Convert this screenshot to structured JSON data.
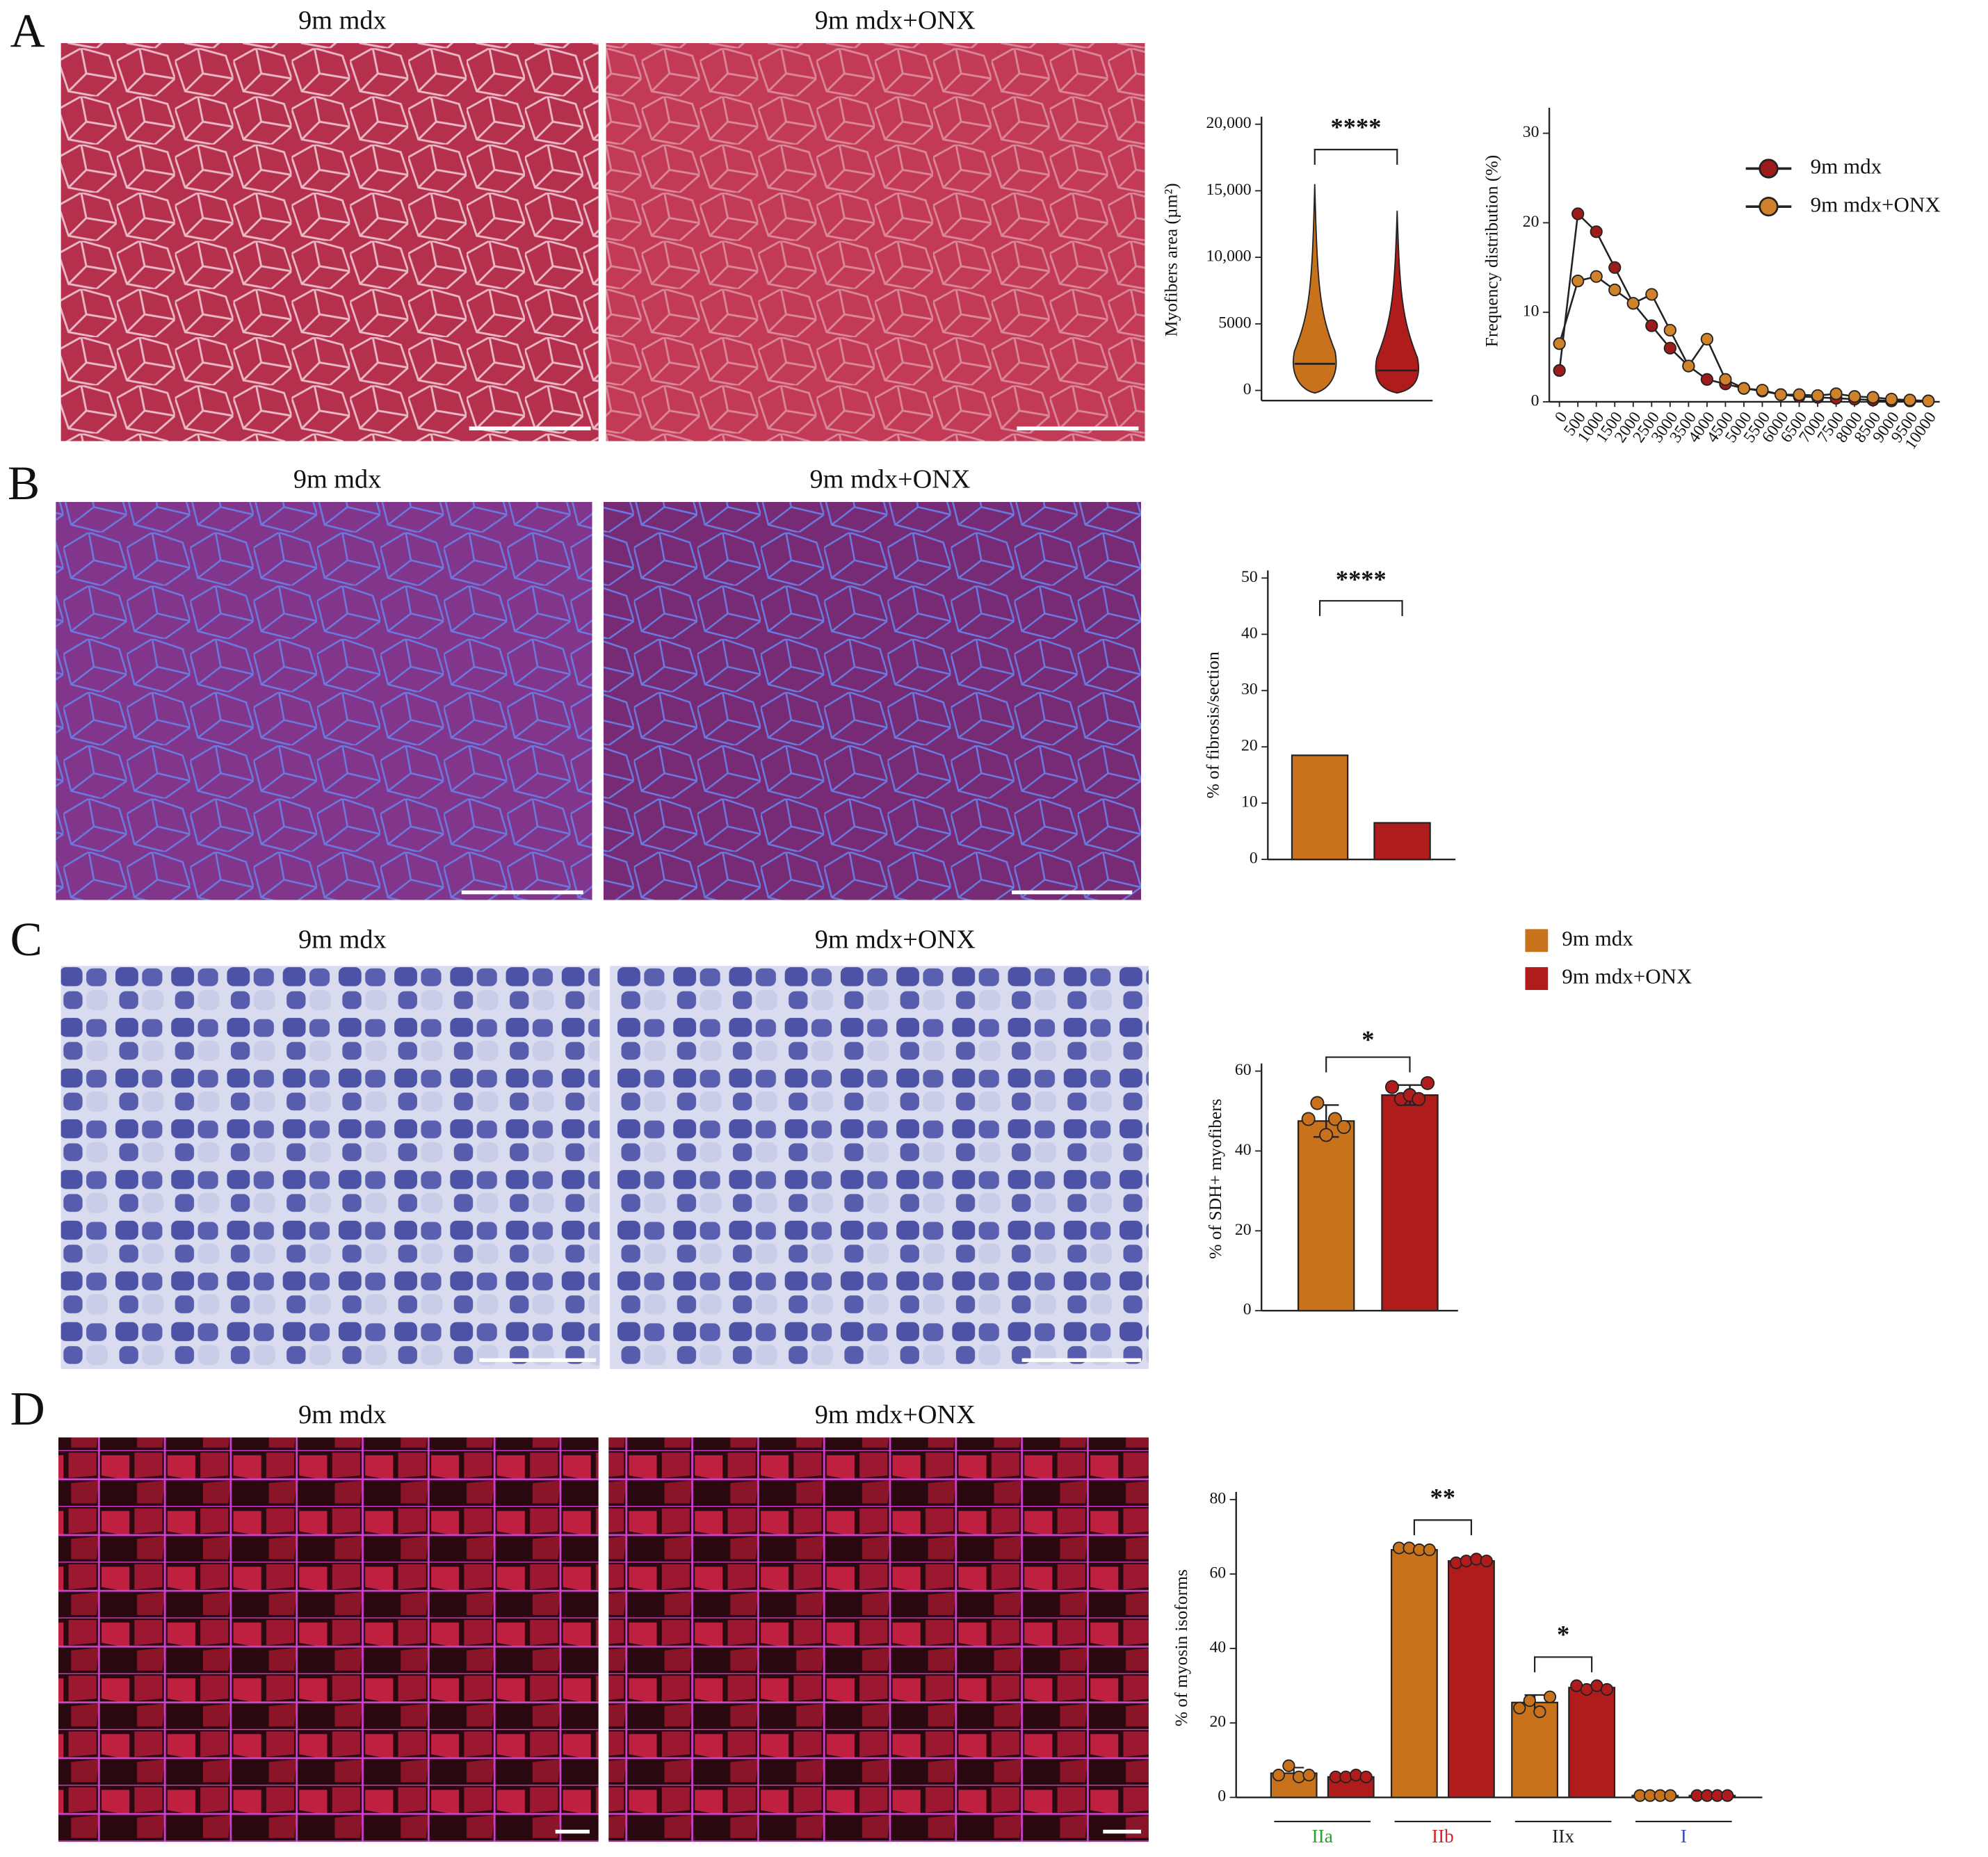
{
  "panels": [
    "A",
    "B",
    "C",
    "D"
  ],
  "image_titles": [
    "9m mdx",
    "9m mdx+ONX",
    "9m mdx",
    "9m mdx+ONX",
    "9m mdx",
    "9m mdx+ONX",
    "9m mdx",
    "9m mdx+ONX"
  ],
  "chart_data": [
    {
      "type": "violin",
      "ylabel": "Myofibers area (µm²)",
      "ylim": [
        0,
        20000
      ],
      "yticks": [
        0,
        5000,
        {
          "value": 10000,
          "label": "10,000"
        },
        {
          "value": 15000,
          "label": "15,000"
        },
        {
          "value": 20000,
          "label": "20,000"
        }
      ],
      "series": [
        {
          "color": "#c8721c",
          "median": 2000,
          "max": 15500
        },
        {
          "color": "#b01c1c",
          "median": 1500,
          "max": 13500
        }
      ],
      "annotations": [
        "****"
      ]
    },
    {
      "type": "line",
      "ylabel": "Frequency distribution (%)",
      "xlim": [
        0,
        10000
      ],
      "ylim": [
        0,
        32
      ],
      "yticks": [
        0,
        10,
        20,
        30
      ],
      "x": [
        0,
        500,
        1000,
        1500,
        2000,
        2500,
        3000,
        3500,
        4000,
        4500,
        5000,
        5500,
        6000,
        6500,
        7000,
        7500,
        8000,
        8500,
        9000,
        9500,
        10000
      ],
      "xticks": [
        0,
        500,
        1000,
        1500,
        2000,
        2500,
        3000,
        3500,
        4000,
        4500,
        5000,
        5500,
        6000,
        6500,
        7000,
        7500,
        8000,
        8500,
        9000,
        9500,
        10000
      ],
      "series": [
        {
          "name": "9m mdx",
          "color": "#9e1b1b",
          "values": [
            3.5,
            21,
            19,
            15,
            11,
            8.5,
            6,
            4,
            2.5,
            2,
            1.5,
            1.2,
            0.8,
            0.6,
            0.5,
            0.4,
            0.3,
            0.2,
            0.1,
            0.1,
            0.1
          ]
        },
        {
          "name": "9m mdx+ONX",
          "color": "#d0822a",
          "values": [
            6.5,
            13.5,
            14,
            12.5,
            11,
            12,
            8,
            4,
            7,
            2.5,
            1.5,
            1.3,
            0.8,
            0.8,
            0.7,
            0.9,
            0.6,
            0.5,
            0.3,
            0.2,
            0.1
          ]
        }
      ],
      "legend": "right"
    },
    {
      "type": "bar",
      "ylabel": "% of fibrosis/section",
      "ylim": [
        0,
        50
      ],
      "yticks": [
        0,
        10,
        20,
        30,
        40,
        50
      ],
      "values": [
        18.5,
        6.5
      ],
      "colors": [
        "#c8721c",
        "#b01c1c"
      ],
      "annotations": [
        "****"
      ]
    },
    {
      "type": "bar",
      "ylabel": "% of SDH+ myofibers",
      "ylim": [
        0,
        60
      ],
      "yticks": [
        0,
        20,
        40,
        60
      ],
      "series": [
        {
          "name": "9m mdx",
          "color": "#c8721c",
          "values": [
            47.5
          ],
          "errors": [
            4
          ],
          "points": [
            48,
            52,
            44,
            48,
            46
          ]
        },
        {
          "name": "9m mdx+ONX",
          "color": "#b01c1c",
          "values": [
            54
          ],
          "errors": [
            2.5
          ],
          "points": [
            56,
            53,
            54,
            53,
            57
          ]
        }
      ],
      "annotations": [
        "*"
      ],
      "legend": "top"
    },
    {
      "type": "grouped_bar",
      "ylabel": "% of myosin isoforms",
      "ylim": [
        0,
        80
      ],
      "yticks": [
        0,
        20,
        40,
        60,
        80
      ],
      "categories": [
        "IIa",
        "IIb",
        "IIx",
        "I"
      ],
      "category_colors": [
        "#2ca02c",
        "#d62728",
        "#222222",
        "#3b4cc0"
      ],
      "series": [
        {
          "color": "#c8721c",
          "values": [
            6.5,
            66.5,
            25.5,
            0.5
          ],
          "errors": [
            1.5,
            0.5,
            2,
            0.2
          ],
          "points": [
            [
              6,
              8.5,
              5.5,
              6
            ],
            [
              67,
              67,
              66.5,
              66.5
            ],
            [
              24,
              26,
              23,
              27
            ],
            [
              0.5,
              0.5,
              0.5,
              0.5
            ]
          ]
        },
        {
          "color": "#b01c1c",
          "values": [
            5.5,
            63.5,
            29.5,
            0.5
          ],
          "errors": [
            0.5,
            0.5,
            0.7,
            0.2
          ],
          "points": [
            [
              5.5,
              5.5,
              6,
              5.5
            ],
            [
              63,
              63.5,
              64,
              63.5
            ],
            [
              30,
              29,
              30,
              29
            ],
            [
              0.5,
              0.5,
              0.5,
              0.5
            ]
          ]
        }
      ],
      "annotations": [
        "**",
        "*"
      ]
    }
  ]
}
